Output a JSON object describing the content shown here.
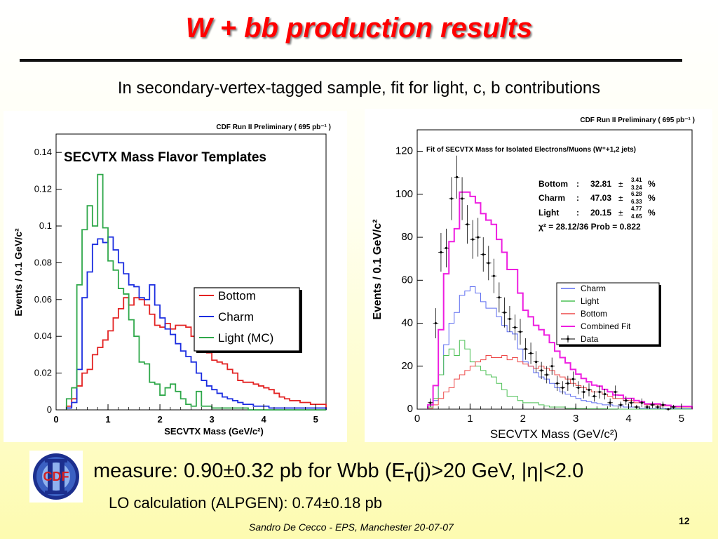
{
  "slide": {
    "title": "W + bb production results",
    "subtitle": "In secondary-vertex-tagged sample, fit for light, c, b contributions",
    "measure": {
      "prefix": "measure: 0.90±0.32 pb for Wbb (E",
      "sub": "T",
      "suffix": "(j)>20 GeV, |η|<2.0"
    },
    "lo_calc": "LO calculation (ALPGEN): 0.74±0.18 pb",
    "footer": "Sandro De Cecco  -  EPS, Manchester 20-07-07",
    "page_number": "12",
    "logo_text": "CDF"
  },
  "chart_data": [
    {
      "type": "line",
      "header": "CDF Run II Preliminary ( 695 pb⁻¹ )",
      "title": "SECVTX Mass Flavor Templates",
      "xlabel": "SECVTX Mass (GeV/c²)",
      "ylabel": "Events / 0.1 GeV/c²",
      "xlim": [
        0,
        5.2
      ],
      "ylim": [
        0,
        0.15
      ],
      "xticks": [
        0,
        1,
        2,
        3,
        4,
        5
      ],
      "yticks": [
        0,
        0.02,
        0.04,
        0.06,
        0.08,
        0.1,
        0.12,
        0.14
      ],
      "ytick_labels": [
        "0",
        "0.02",
        "0.04",
        "0.06",
        "0.08",
        "0.1",
        "0.12",
        "0.14"
      ],
      "legend_position": "right",
      "bin_edges": [
        0.2,
        5.2
      ],
      "series": [
        {
          "name": "Bottom",
          "color": "#e32222",
          "values": [
            0.002,
            0.006,
            0.013,
            0.02,
            0.022,
            0.03,
            0.034,
            0.038,
            0.043,
            0.05,
            0.055,
            0.061,
            0.057,
            0.061,
            0.06,
            0.057,
            0.052,
            0.046,
            0.045,
            0.047,
            0.044,
            0.046,
            0.046,
            0.045,
            0.04,
            0.04,
            0.037,
            0.031,
            0.027,
            0.026,
            0.025,
            0.022,
            0.02,
            0.016,
            0.015,
            0.015,
            0.014,
            0.013,
            0.012,
            0.011,
            0.009,
            0.007,
            0.006,
            0.005,
            0.005,
            0.004,
            0.004,
            0.003,
            0.003,
            0.003
          ]
        },
        {
          "name": "Charm",
          "color": "#1b2de0",
          "values": [
            0.001,
            0.004,
            0.022,
            0.061,
            0.075,
            0.09,
            0.093,
            0.091,
            0.094,
            0.087,
            0.08,
            0.074,
            0.068,
            0.067,
            0.061,
            0.06,
            0.068,
            0.057,
            0.05,
            0.044,
            0.041,
            0.036,
            0.032,
            0.029,
            0.026,
            0.02,
            0.016,
            0.013,
            0.011,
            0.009,
            0.007,
            0.006,
            0.005,
            0.004,
            0.003,
            0.003,
            0.002,
            0.002,
            0.002,
            0.001,
            0.001,
            0.001,
            0.001,
            0.001,
            0.001,
            0.001,
            0.001,
            0.001,
            0.001,
            0.001
          ]
        },
        {
          "name": "Light (MC)",
          "color": "#2fa84a",
          "values": [
            0.006,
            0.012,
            0.068,
            0.098,
            0.111,
            0.1,
            0.128,
            0.099,
            0.081,
            0.076,
            0.066,
            0.063,
            0.049,
            0.04,
            0.026,
            0.025,
            0.015,
            0.014,
            0.008,
            0.012,
            0.014,
            0.01,
            0.006,
            0.003,
            0.002,
            0.01,
            0.002,
            0.002,
            0.001,
            0.001,
            0.001,
            0.001,
            0.001,
            0.001,
            0.001,
            0,
            0,
            0,
            0,
            0,
            0,
            0,
            0,
            0,
            0,
            0,
            0,
            0,
            0,
            0
          ]
        }
      ]
    },
    {
      "type": "line",
      "header": "CDF Run II Preliminary ( 695 pb⁻¹ )",
      "title": "Fit of SECVTX Mass for Isolated Electrons/Muons (W⁺+1,2 jets)",
      "xlabel": "SECVTX Mass (GeV/c²)",
      "ylabel": "Events / 0.1 GeV/c²",
      "xlim": [
        0,
        5.2
      ],
      "ylim": [
        0,
        130
      ],
      "xticks": [
        0,
        1,
        2,
        3,
        4,
        5
      ],
      "yticks": [
        0,
        20,
        40,
        60,
        80,
        100,
        120
      ],
      "ytick_labels": [
        "0",
        "20",
        "40",
        "60",
        "80",
        "100",
        "120"
      ],
      "legend_position": "right",
      "bin_edges": [
        0.2,
        5.2
      ],
      "fit_results": [
        {
          "label": "Bottom",
          "value": "32.81",
          "plus": "3.41",
          "minus": "3.24",
          "unit": "%"
        },
        {
          "label": "Charm",
          "value": "47.03",
          "plus": "6.28",
          "minus": "6.33",
          "unit": "%"
        },
        {
          "label": "Light",
          "value": "20.15",
          "plus": "4.77",
          "minus": "4.65",
          "unit": "%"
        }
      ],
      "chi2_text": "χ² =   28.12/36  Prob =   0.822",
      "series": [
        {
          "name": "Charm",
          "color": "#5c6cf0",
          "values": [
            0.5,
            4,
            16,
            30,
            40,
            45,
            53,
            55,
            57,
            54,
            50,
            47,
            47,
            43,
            39,
            36,
            35,
            28,
            22,
            20,
            17,
            15,
            14,
            12,
            10,
            8,
            7,
            6,
            5,
            4,
            3.5,
            3,
            2.5,
            2,
            2,
            1.5,
            1.5,
            1,
            1,
            1,
            0.5,
            0.5,
            0.5,
            0.5,
            0.5,
            0.3,
            0.3,
            0.3,
            0.3,
            0.3
          ]
        },
        {
          "name": "Light",
          "color": "#4cc055",
          "values": [
            1,
            5,
            16,
            25,
            28,
            25,
            32,
            28,
            22,
            20,
            18,
            16,
            15,
            12,
            9,
            6,
            6,
            4,
            3,
            3,
            3,
            2,
            1.5,
            1,
            1,
            1,
            0.5,
            0.5,
            0.3,
            0.3,
            0.2,
            0.2,
            0.2,
            0.2,
            0.1,
            0.1,
            0,
            0,
            0,
            0,
            0,
            0,
            0,
            0,
            0,
            0,
            0,
            0,
            0,
            0
          ]
        },
        {
          "name": "Bottom",
          "color": "#ee4b4b",
          "values": [
            0.5,
            2,
            5,
            8,
            10,
            14,
            16,
            18,
            20,
            22,
            23,
            25,
            24,
            24,
            25,
            23,
            24,
            22,
            21,
            20,
            19,
            20,
            19,
            18,
            16,
            15,
            14,
            12,
            11,
            10,
            9,
            8,
            8,
            7,
            6,
            5,
            5,
            4,
            4,
            3,
            3,
            2,
            2,
            2,
            1.5,
            1.5,
            1,
            1,
            1,
            1
          ]
        },
        {
          "name": "Combined Fit",
          "color": "#ee1ee0",
          "values": [
            2,
            11,
            37,
            63,
            78,
            84,
            101,
            101,
            99,
            96,
            91,
            88,
            86,
            79,
            73,
            65,
            65,
            54,
            46,
            43,
            39,
            37,
            34.5,
            31,
            27,
            24,
            21.5,
            18.5,
            16.3,
            14.3,
            12.7,
            11.2,
            10.7,
            9.2,
            8.1,
            6.6,
            6.5,
            5,
            5,
            4,
            3.5,
            2.5,
            2.5,
            2.5,
            2,
            1.8,
            1.3,
            1.3,
            1.3,
            1.3
          ]
        },
        {
          "name": "Data",
          "color": "#000000",
          "x": [
            0.25,
            0.35,
            0.45,
            0.55,
            0.65,
            0.75,
            0.85,
            0.95,
            1.05,
            1.15,
            1.25,
            1.35,
            1.45,
            1.55,
            1.65,
            1.75,
            1.85,
            1.95,
            2.05,
            2.15,
            2.25,
            2.35,
            2.45,
            2.55,
            2.65,
            2.75,
            2.85,
            2.95,
            3.05,
            3.15,
            3.25,
            3.35,
            3.45,
            3.55,
            3.65,
            3.75,
            3.85,
            3.95,
            4.05,
            4.15,
            4.25,
            4.35,
            4.45,
            4.55,
            4.65,
            4.75,
            4.85
          ],
          "y": [
            3,
            40,
            73,
            75,
            98,
            108,
            98,
            86,
            79,
            80,
            72,
            68,
            62,
            52,
            45,
            42,
            38,
            36,
            28,
            26,
            22,
            18,
            16,
            20,
            12,
            10,
            12,
            14,
            10,
            8,
            9,
            6,
            8,
            7,
            3,
            8,
            2,
            4,
            3,
            1,
            3,
            1,
            2,
            1,
            2,
            0,
            1
          ],
          "yerr": [
            2,
            7,
            9,
            9,
            10,
            10,
            10,
            9,
            9,
            9,
            8,
            8,
            8,
            7,
            7,
            6,
            6,
            6,
            5,
            5,
            5,
            4,
            4,
            4,
            3.5,
            3,
            3.5,
            3.5,
            3,
            3,
            3,
            2.5,
            3,
            2.5,
            2,
            3,
            1.5,
            2,
            2,
            1,
            2,
            1,
            1.5,
            1,
            1.5,
            0,
            1
          ]
        }
      ]
    }
  ]
}
